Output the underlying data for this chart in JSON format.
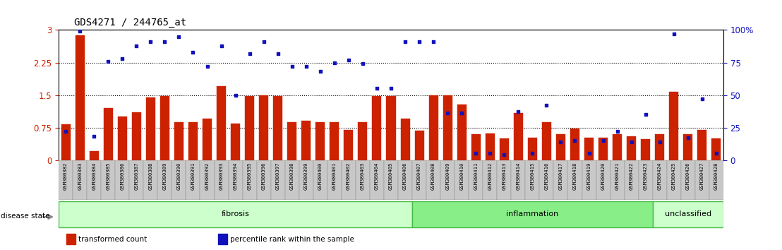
{
  "title": "GDS4271 / 244765_at",
  "samples": [
    "GSM380382",
    "GSM380383",
    "GSM380384",
    "GSM380385",
    "GSM380386",
    "GSM380387",
    "GSM380388",
    "GSM380389",
    "GSM380390",
    "GSM380391",
    "GSM380392",
    "GSM380393",
    "GSM380394",
    "GSM380395",
    "GSM380396",
    "GSM380397",
    "GSM380398",
    "GSM380399",
    "GSM380400",
    "GSM380401",
    "GSM380402",
    "GSM380403",
    "GSM380404",
    "GSM380405",
    "GSM380406",
    "GSM380407",
    "GSM380408",
    "GSM380409",
    "GSM380410",
    "GSM380411",
    "GSM380412",
    "GSM380413",
    "GSM380414",
    "GSM380415",
    "GSM380416",
    "GSM380417",
    "GSM380418",
    "GSM380419",
    "GSM380420",
    "GSM380421",
    "GSM380422",
    "GSM380423",
    "GSM380424",
    "GSM380425",
    "GSM380426",
    "GSM380427",
    "GSM380428"
  ],
  "bar_heights": [
    0.82,
    2.88,
    0.2,
    1.2,
    1.0,
    1.1,
    1.45,
    1.48,
    0.88,
    0.88,
    0.95,
    1.7,
    0.84,
    1.48,
    1.5,
    1.48,
    0.88,
    0.9,
    0.88,
    0.88,
    0.7,
    0.88,
    1.48,
    1.48,
    0.95,
    0.68,
    1.5,
    1.5,
    1.28,
    0.6,
    0.62,
    0.5,
    1.08,
    0.52,
    0.88,
    0.6,
    0.72,
    0.52,
    0.52,
    0.6,
    0.55,
    0.48,
    0.6,
    1.58,
    0.6,
    0.7,
    0.5
  ],
  "dot_percentiles": [
    22,
    99,
    18,
    76,
    78,
    88,
    91,
    91,
    95,
    83,
    72,
    88,
    50,
    82,
    91,
    82,
    72,
    72,
    68,
    75,
    77,
    74,
    55,
    55,
    91,
    91,
    91,
    36,
    36,
    5,
    5,
    4,
    37,
    5,
    42,
    14,
    15,
    5,
    15,
    22,
    14,
    35,
    14,
    97,
    17,
    47,
    5
  ],
  "bar_color": "#cc2200",
  "dot_color": "#1111bb",
  "ylim_left": [
    0,
    3.0
  ],
  "ylim_right": [
    0,
    100
  ],
  "yticks_left": [
    0,
    0.75,
    1.5,
    2.25,
    3.0
  ],
  "ytick_labels_left": [
    "0",
    "0.75",
    "1.5",
    "2.25",
    "3"
  ],
  "ytick_labels_right": [
    "0",
    "25",
    "50",
    "75",
    "100%"
  ],
  "dotted_lines": [
    0.75,
    1.5,
    2.25
  ],
  "groups": [
    {
      "label": "fibrosis",
      "start": 0,
      "end": 25,
      "color": "#ccffcc"
    },
    {
      "label": "inflammation",
      "start": 25,
      "end": 42,
      "color": "#88ee88"
    },
    {
      "label": "unclassified",
      "start": 42,
      "end": 47,
      "color": "#ccffcc"
    }
  ],
  "group_border_color": "#44bb44",
  "disease_state_label": "disease state",
  "legend_items": [
    {
      "label": "transformed count",
      "color": "#cc2200"
    },
    {
      "label": "percentile rank within the sample",
      "color": "#1111bb"
    }
  ],
  "bg_color": "#ffffff",
  "tick_color_left": "#cc2200",
  "tick_color_right": "#1111bb",
  "xlabel_bg": "#cccccc"
}
